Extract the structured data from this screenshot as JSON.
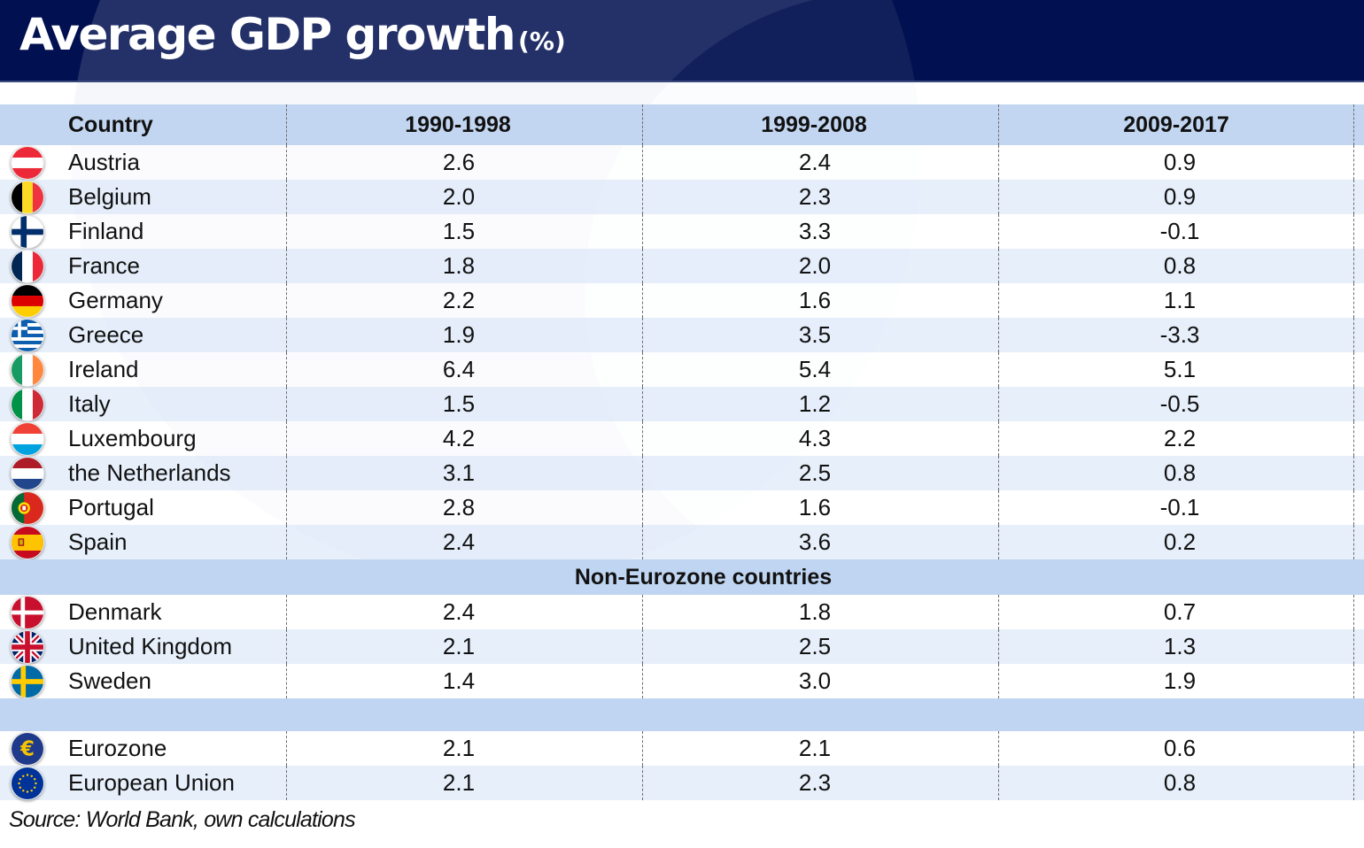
{
  "header": {
    "title": "Average GDP growth",
    "unit": "(%)"
  },
  "colors": {
    "header_bg": "#011050",
    "header_row_bg": "#c0d5f1",
    "stripe_light": "#ffffff",
    "stripe_blue": "#e6eefa"
  },
  "chart_data": {
    "type": "table",
    "title": "Average GDP growth (%)",
    "columns": [
      "Country",
      "1990-1998",
      "1999-2008",
      "2009-2017"
    ],
    "groups": [
      {
        "label": "",
        "rows": [
          {
            "country": "Austria",
            "flag": "austria-flag-icon",
            "values": [
              "2.6",
              "2.4",
              "0.9"
            ]
          },
          {
            "country": "Belgium",
            "flag": "belgium-flag-icon",
            "values": [
              "2.0",
              "2.3",
              "0.9"
            ]
          },
          {
            "country": "Finland",
            "flag": "finland-flag-icon",
            "values": [
              "1.5",
              "3.3",
              "-0.1"
            ]
          },
          {
            "country": "France",
            "flag": "france-flag-icon",
            "values": [
              "1.8",
              "2.0",
              "0.8"
            ]
          },
          {
            "country": "Germany",
            "flag": "germany-flag-icon",
            "values": [
              "2.2",
              "1.6",
              "1.1"
            ]
          },
          {
            "country": "Greece",
            "flag": "greece-flag-icon",
            "values": [
              "1.9",
              "3.5",
              "-3.3"
            ]
          },
          {
            "country": "Ireland",
            "flag": "ireland-flag-icon",
            "values": [
              "6.4",
              "5.4",
              "5.1"
            ]
          },
          {
            "country": "Italy",
            "flag": "italy-flag-icon",
            "values": [
              "1.5",
              "1.2",
              "-0.5"
            ]
          },
          {
            "country": "Luxembourg",
            "flag": "luxembourg-flag-icon",
            "values": [
              "4.2",
              "4.3",
              "2.2"
            ]
          },
          {
            "country": "the Netherlands",
            "flag": "netherlands-flag-icon",
            "values": [
              "3.1",
              "2.5",
              "0.8"
            ]
          },
          {
            "country": "Portugal",
            "flag": "portugal-flag-icon",
            "values": [
              "2.8",
              "1.6",
              "-0.1"
            ]
          },
          {
            "country": "Spain",
            "flag": "spain-flag-icon",
            "values": [
              "2.4",
              "3.6",
              "0.2"
            ]
          }
        ]
      },
      {
        "label": "Non-Eurozone countries",
        "rows": [
          {
            "country": "Denmark",
            "flag": "denmark-flag-icon",
            "values": [
              "2.4",
              "1.8",
              "0.7"
            ]
          },
          {
            "country": "United Kingdom",
            "flag": "uk-flag-icon",
            "values": [
              "2.1",
              "2.5",
              "1.3"
            ]
          },
          {
            "country": "Sweden",
            "flag": "sweden-flag-icon",
            "values": [
              "1.4",
              "3.0",
              "1.9"
            ]
          }
        ]
      },
      {
        "label": "",
        "rows": [
          {
            "country": "Eurozone",
            "flag": "euro-sign-icon",
            "values": [
              "2.1",
              "2.1",
              "0.6"
            ]
          },
          {
            "country": "European Union",
            "flag": "eu-flag-icon",
            "values": [
              "2.1",
              "2.3",
              "0.8"
            ]
          }
        ]
      }
    ],
    "source": "Source: World Bank, own calculations"
  }
}
